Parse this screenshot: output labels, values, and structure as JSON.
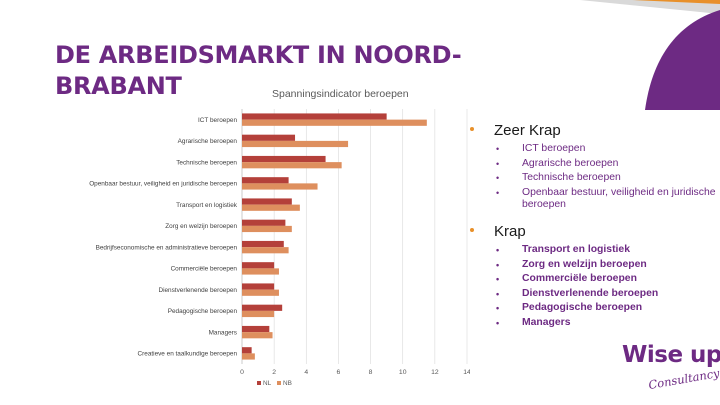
{
  "slide": {
    "title": "DE ARBEIDSMARKT IN NOORD-BRABANT",
    "colors": {
      "purple": "#6d2a83",
      "orange": "#e8902a",
      "nl_bar": "#b4403a",
      "nb_bar": "#de8f5e"
    }
  },
  "chart_data": {
    "type": "bar",
    "orientation": "horizontal",
    "title": "Spanningsindicator beroepen",
    "categories": [
      "ICT beroepen",
      "Agrarische beroepen",
      "Technische beroepen",
      "Openbaar bestuur, veiligheid en juridische beroepen",
      "Transport en logistiek",
      "Zorg en welzijn beroepen",
      "Bedrijfseconomische en administratieve beroepen",
      "Commerciële beroepen",
      "Dienstverlenende beroepen",
      "Pedagogische beroepen",
      "Managers",
      "Creatieve en taalkundige beroepen"
    ],
    "series": [
      {
        "name": "NL",
        "color": "#b4403a",
        "values": [
          9.0,
          3.3,
          5.2,
          2.9,
          3.1,
          2.7,
          2.6,
          2.0,
          2.0,
          2.5,
          1.7,
          0.6
        ]
      },
      {
        "name": "NB",
        "color": "#de8f5e",
        "values": [
          11.5,
          6.6,
          6.2,
          4.7,
          3.6,
          3.1,
          2.9,
          2.3,
          2.3,
          2.0,
          1.9,
          0.8
        ]
      }
    ],
    "xlim": [
      0,
      14
    ],
    "xticks": [
      "0",
      "2",
      "4",
      "6",
      "8",
      "10",
      "12",
      "14"
    ],
    "grid": true,
    "legend_position": "bottom-left"
  },
  "lists": {
    "zeer_krap": {
      "heading": "Zeer Krap",
      "items": [
        "ICT beroepen",
        "Agrarische beroepen",
        "Technische beroepen",
        "Openbaar bestuur, veiligheid en juridische beroepen"
      ]
    },
    "krap": {
      "heading": "Krap",
      "items": [
        "Transport en logistiek",
        "Zorg en welzijn beroepen",
        "Commerciële beroepen",
        "Dienstverlenende beroepen",
        " Pedagogische beroepen",
        "Managers"
      ]
    }
  },
  "logo": {
    "main": "Wise up",
    "sub": "Consultancy"
  }
}
